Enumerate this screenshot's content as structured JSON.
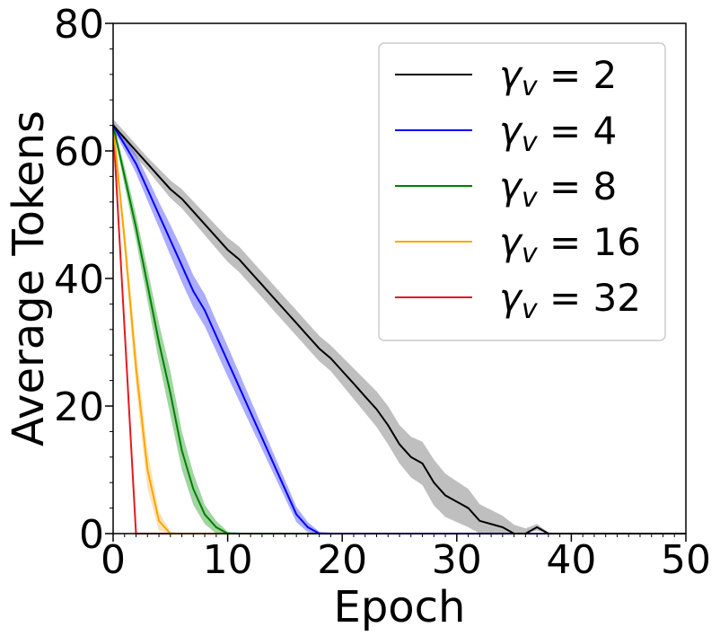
{
  "chart_data": {
    "type": "line",
    "xlabel": "Epoch",
    "ylabel": "Average Tokens",
    "xlim": [
      0,
      50
    ],
    "ylim": [
      0,
      80
    ],
    "xticks": [
      0,
      10,
      20,
      30,
      40,
      50
    ],
    "yticks": [
      0,
      20,
      40,
      60,
      80
    ],
    "grid": false,
    "legend_position": "top-right",
    "legend_symbol": "γ",
    "legend_subscript": "v",
    "series": [
      {
        "name": "γv = 2",
        "legend_value": "= 2",
        "color": "#000000",
        "band_color": "#808080",
        "x": [
          0,
          1,
          2,
          3,
          4,
          5,
          6,
          7,
          8,
          9,
          10,
          11,
          12,
          13,
          14,
          15,
          16,
          17,
          18,
          19,
          20,
          21,
          22,
          23,
          24,
          25,
          26,
          27,
          28,
          29,
          30,
          31,
          32,
          33,
          34,
          35,
          36,
          37,
          38,
          40,
          50
        ],
        "y": [
          64,
          62,
          60,
          58,
          56,
          54,
          52.5,
          50.5,
          48.5,
          46.5,
          44.5,
          43,
          41,
          39,
          37,
          35,
          33,
          31,
          29,
          27.5,
          25.5,
          23.5,
          21.5,
          19.5,
          17,
          14,
          12,
          11,
          8,
          6,
          5,
          4,
          2,
          1.5,
          1,
          0,
          0,
          1,
          0,
          0,
          0
        ],
        "band": [
          1,
          1,
          1,
          1,
          1.2,
          1.4,
          1.5,
          1.6,
          1.7,
          1.8,
          1.9,
          2,
          2,
          2,
          2,
          2,
          2,
          2,
          2,
          2,
          2.2,
          2.4,
          2.6,
          2.8,
          3,
          3,
          3.2,
          3.4,
          3.6,
          3.4,
          3.2,
          3,
          2.6,
          2.2,
          1.8,
          1.4,
          0.8,
          0.5,
          0.2,
          0,
          0
        ]
      },
      {
        "name": "γv = 4",
        "legend_value": "= 4",
        "color": "#0000ff",
        "band_color": "#5a5aff",
        "x": [
          0,
          1,
          2,
          3,
          4,
          5,
          6,
          7,
          8,
          9,
          10,
          11,
          12,
          13,
          14,
          15,
          16,
          17,
          18,
          20,
          50
        ],
        "y": [
          64,
          61,
          58,
          54,
          50,
          46,
          42,
          38,
          35,
          31,
          27,
          23,
          19,
          15,
          11,
          7,
          3,
          1,
          0,
          0,
          0
        ],
        "band": [
          0.5,
          1,
          1.5,
          1.8,
          2,
          2.4,
          2.6,
          2.5,
          2.5,
          2.4,
          2.4,
          2.2,
          2,
          1.8,
          1.6,
          1.4,
          1.2,
          0.8,
          0.3,
          0,
          0
        ]
      },
      {
        "name": "γv = 8",
        "legend_value": "= 8",
        "color": "#008000",
        "band_color": "#44aa44",
        "x": [
          0,
          1,
          2,
          3,
          4,
          5,
          6,
          7,
          8,
          9,
          10,
          12,
          50
        ],
        "y": [
          64,
          56,
          48,
          39,
          30,
          22,
          13,
          7,
          3,
          1,
          0,
          0,
          0
        ],
        "band": [
          0.5,
          1.5,
          2,
          2.5,
          3,
          3.5,
          3,
          2.5,
          1.5,
          1,
          0.3,
          0,
          0
        ]
      },
      {
        "name": "γv = 16",
        "legend_value": "= 16",
        "color": "#ffa500",
        "band_color": "#ffc870",
        "x": [
          0,
          1,
          2,
          3,
          4,
          5,
          6,
          50
        ],
        "y": [
          64,
          46,
          26,
          10,
          2,
          0,
          0,
          0
        ],
        "band": [
          0.5,
          2,
          3,
          3,
          1.5,
          0.3,
          0,
          0
        ]
      },
      {
        "name": "γv = 32",
        "legend_value": "= 32",
        "color": "#e31a1c",
        "band_color": "#ff8a8a",
        "x": [
          0,
          1,
          2,
          3,
          50
        ],
        "y": [
          64,
          32,
          0,
          0,
          0
        ],
        "band": [
          0.3,
          0.8,
          0,
          0,
          0
        ]
      }
    ]
  }
}
